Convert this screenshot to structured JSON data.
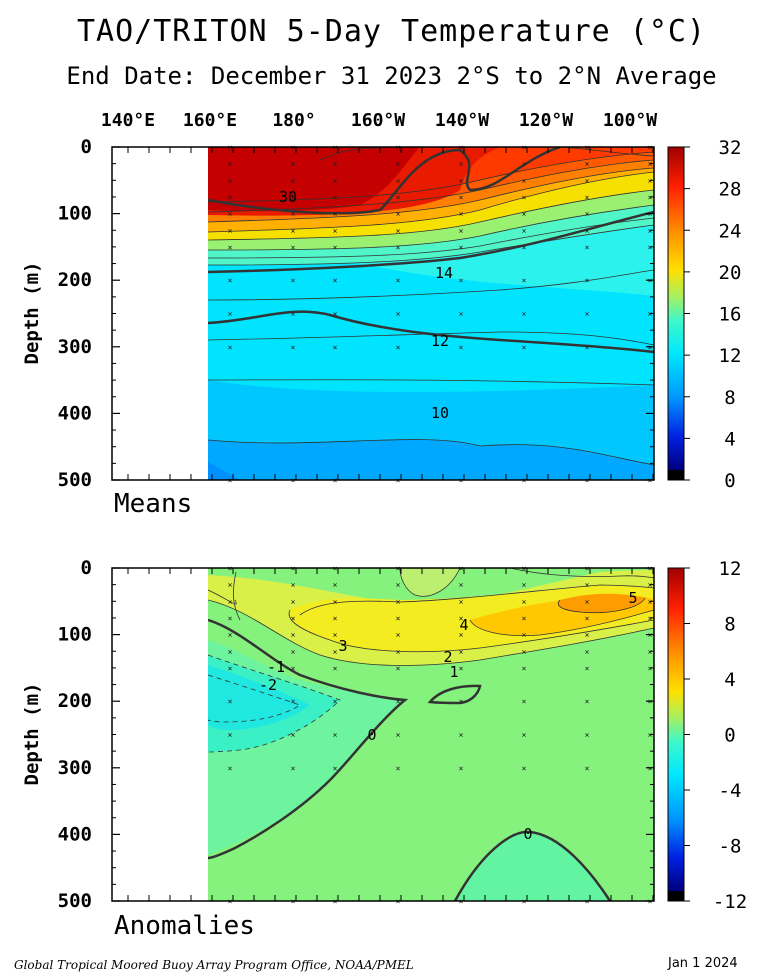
{
  "title": "TAO/TRITON 5-Day Temperature (°C)",
  "subtitle": "End Date: December 31 2023  2°S to 2°N Average",
  "footer": {
    "left": "Global Tropical Moored Buoy Array Program Office, NOAA/PMEL",
    "right": "Jan  1 2024"
  },
  "chart_data": [
    {
      "type": "heatmap",
      "panel_label": "Means",
      "ylabel": "Depth (m)",
      "x_ticks": [
        "140°E",
        "160°E",
        "180°",
        "160°W",
        "140°W",
        "120°W",
        "100°W"
      ],
      "y_ticks": [
        "0",
        "100",
        "200",
        "300",
        "400",
        "500"
      ],
      "ylim": [
        0,
        500
      ],
      "colorbar": {
        "ticks": [
          "32",
          "28",
          "24",
          "20",
          "16",
          "12",
          "8",
          "4",
          "0"
        ],
        "range": [
          0,
          32
        ]
      },
      "contour_labels": [
        {
          "text": "30",
          "lon": 171,
          "depth": 80
        },
        {
          "text": "14",
          "lon": 213,
          "depth": 190
        },
        {
          "text": "12",
          "lon": 223,
          "depth": 290
        },
        {
          "text": "10",
          "lon": 221,
          "depth": 400
        }
      ],
      "contour_levels_labeled": [
        30,
        14,
        12,
        10
      ]
    },
    {
      "type": "heatmap",
      "panel_label": "Anomalies",
      "ylabel": "Depth (m)",
      "x_ticks": [
        "140°E",
        "160°E",
        "180°",
        "160°W",
        "140°W",
        "120°W",
        "100°W"
      ],
      "y_ticks": [
        "0",
        "100",
        "200",
        "300",
        "400",
        "500"
      ],
      "ylim": [
        0,
        500
      ],
      "colorbar": {
        "ticks": [
          "12",
          "8",
          "4",
          "0",
          "-4",
          "-8",
          "-12"
        ],
        "range": [
          -12,
          12
        ]
      },
      "contour_labels": [
        {
          "text": "5",
          "lon": 264,
          "depth": 45
        },
        {
          "text": "4",
          "lon": 220,
          "depth": 85
        },
        {
          "text": "3",
          "lon": 185,
          "depth": 120
        },
        {
          "text": "2",
          "lon": 220,
          "depth": 135
        },
        {
          "text": "1",
          "lon": 220,
          "depth": 155
        },
        {
          "text": "-1",
          "lon": 165,
          "depth": 155
        },
        {
          "text": "-2",
          "lon": 162,
          "depth": 180
        },
        {
          "text": "0",
          "lon": 183,
          "depth": 250
        },
        {
          "text": "0",
          "lon": 241,
          "depth": 400
        }
      ]
    }
  ]
}
